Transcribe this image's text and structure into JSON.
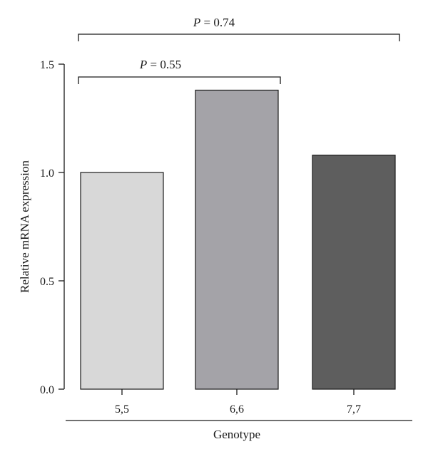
{
  "chart_data": {
    "type": "bar",
    "categories": [
      "5,5",
      "6,6",
      "7,7"
    ],
    "values": [
      1.0,
      1.38,
      1.08
    ],
    "colors": [
      "#d8d8d8",
      "#a4a3a8",
      "#5e5e5e"
    ],
    "xlabel": "Genotype",
    "ylabel": "Relative mRNA expression",
    "ylim": [
      0,
      1.5
    ],
    "yticks": [
      "0.0",
      "0.5",
      "1.0",
      "1.5"
    ],
    "grid": false,
    "annotations": [
      {
        "p_symbol": "P",
        "p_value": "= 0.55",
        "from": 0,
        "to": 1
      },
      {
        "p_symbol": "P",
        "p_value": "= 0.74",
        "from": 0,
        "to": 2
      }
    ]
  }
}
